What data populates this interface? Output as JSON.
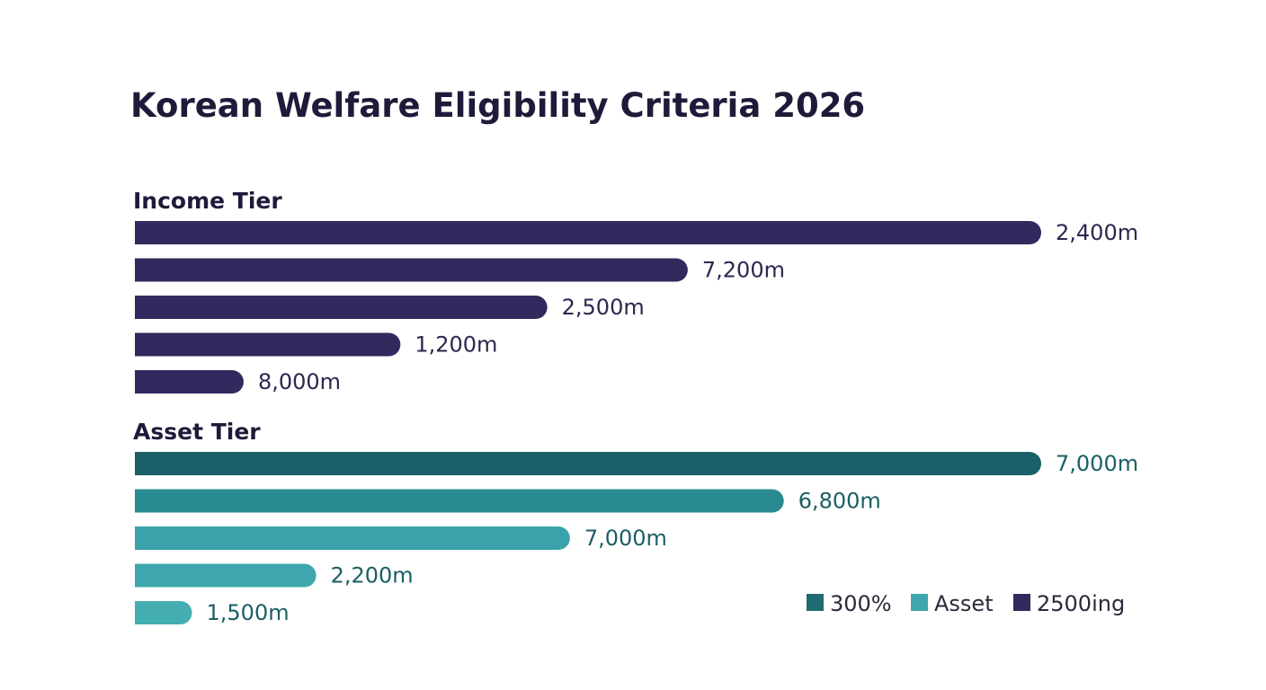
{
  "chart_data": {
    "type": "bar",
    "orientation": "horizontal",
    "title": "Korean Welfare Eligibility Criteria 2026",
    "groups": [
      {
        "name": "Income Tier",
        "labels": [
          "2,400m",
          "7,200m",
          "2,500m",
          "1,200m",
          "8,000m"
        ],
        "bar_fractions": [
          1.0,
          0.61,
          0.455,
          0.293,
          0.12
        ],
        "colors": [
          "#33295e",
          "#33295e",
          "#33295e",
          "#33295e",
          "#33295e"
        ]
      },
      {
        "name": "Asset Tier",
        "labels": [
          "7,000m",
          "6,800m",
          "7,000m",
          "2,200m",
          "1,500m"
        ],
        "bar_fractions": [
          1.0,
          0.716,
          0.48,
          0.2,
          0.063
        ],
        "colors": [
          "#1b6068",
          "#2a8a91",
          "#3aa3aa",
          "#3ea7ad",
          "#44adb2"
        ]
      }
    ],
    "legend": {
      "placement": "bottom-right",
      "items": [
        {
          "label": "300%",
          "color": "#1e6b72"
        },
        {
          "label": "Asset",
          "color": "#3fa8ae"
        },
        {
          "label": "2500ing",
          "color": "#33295e"
        }
      ]
    }
  }
}
